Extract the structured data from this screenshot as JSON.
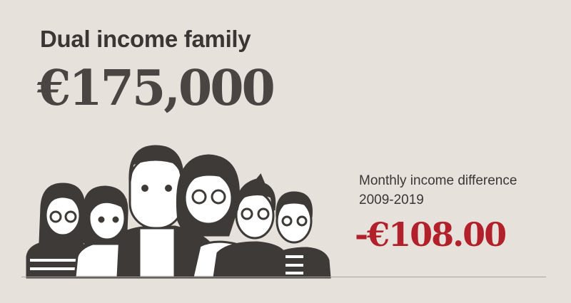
{
  "headline": {
    "title": "Dual income family",
    "amount": "€175,000"
  },
  "difference": {
    "label_line1": "Monthly income difference",
    "label_line2": "2009-2019",
    "value": "-€108.00"
  },
  "colors": {
    "background": "#e6e2db",
    "text": "#3a3634",
    "accent": "#b2202b",
    "figure_dark": "#3d3a38"
  },
  "illustration": {
    "icon": "family-group-icon"
  }
}
